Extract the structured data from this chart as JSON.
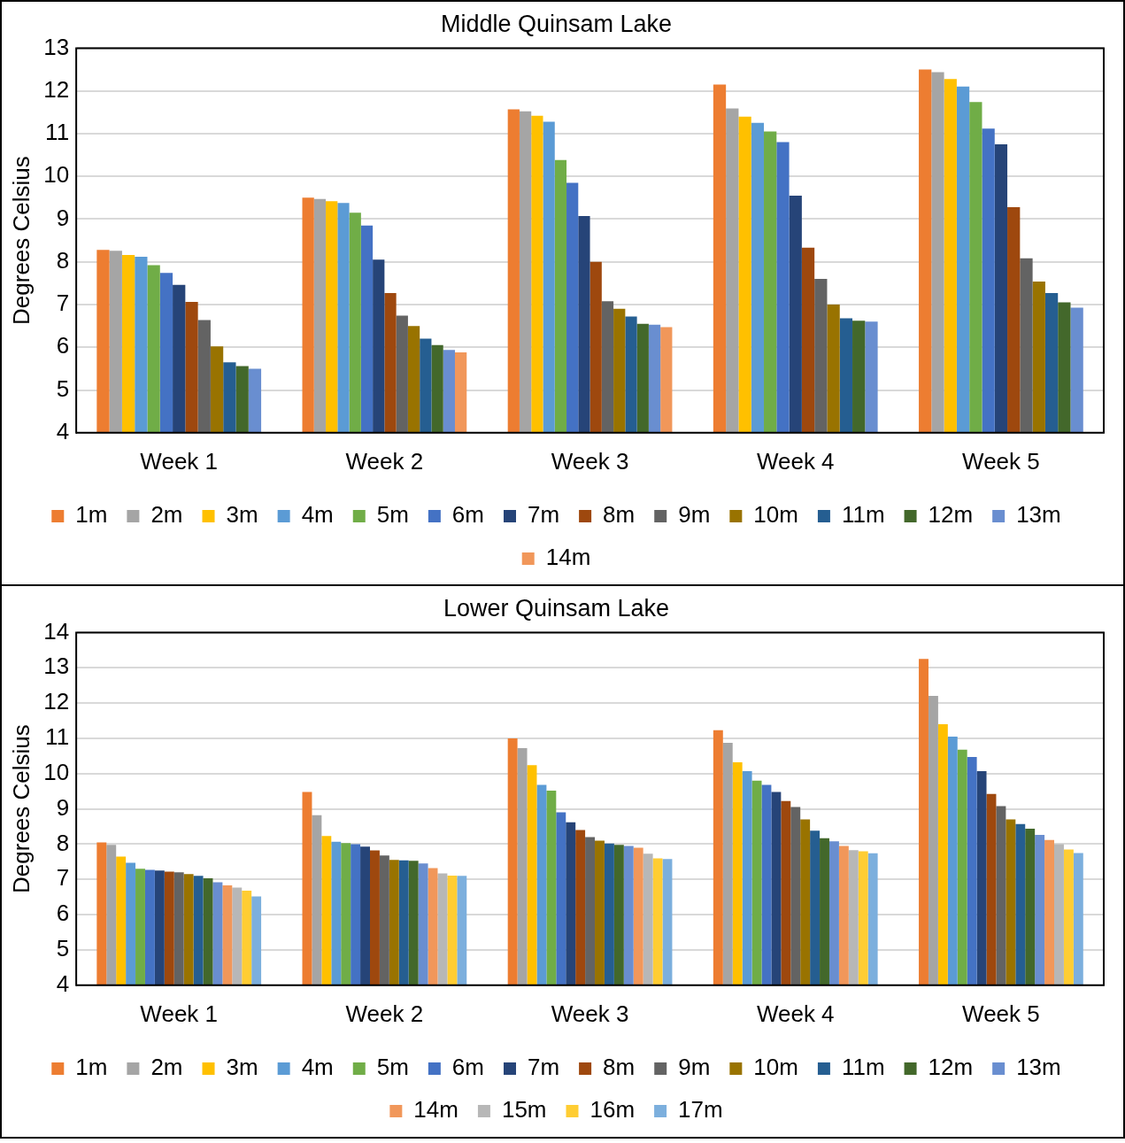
{
  "chart_data": [
    {
      "type": "bar",
      "title": "Middle Quinsam Lake",
      "ylabel": "Degrees Celsius",
      "categories": [
        "Week 1",
        "Week 2",
        "Week 3",
        "Week 4",
        "Week 5"
      ],
      "ylim": [
        4,
        13
      ],
      "yticks": [
        4,
        5,
        6,
        7,
        8,
        9,
        10,
        11,
        12,
        13
      ],
      "grid": "y",
      "legend": "bottom",
      "series": [
        {
          "name": "1m",
          "color": "#ed7d31",
          "values": [
            8.28,
            9.5,
            11.57,
            12.15,
            12.5
          ]
        },
        {
          "name": "2m",
          "color": "#a5a5a5",
          "values": [
            8.26,
            9.47,
            11.52,
            11.59,
            12.44
          ]
        },
        {
          "name": "3m",
          "color": "#ffc000",
          "values": [
            8.16,
            9.42,
            11.42,
            11.4,
            12.28
          ]
        },
        {
          "name": "4m",
          "color": "#5b9bd5",
          "values": [
            8.12,
            9.38,
            11.28,
            11.25,
            12.1
          ]
        },
        {
          "name": "5m",
          "color": "#70ad47",
          "values": [
            7.92,
            9.15,
            10.38,
            11.05,
            11.74
          ]
        },
        {
          "name": "6m",
          "color": "#4472c4",
          "values": [
            7.74,
            8.85,
            9.85,
            10.8,
            11.12
          ]
        },
        {
          "name": "7m",
          "color": "#264478",
          "values": [
            7.46,
            8.05,
            9.07,
            9.55,
            10.75
          ]
        },
        {
          "name": "8m",
          "color": "#9e480e",
          "values": [
            7.06,
            7.27,
            8.0,
            8.33,
            9.28
          ]
        },
        {
          "name": "9m",
          "color": "#636363",
          "values": [
            6.64,
            6.74,
            7.08,
            7.6,
            8.08
          ]
        },
        {
          "name": "10m",
          "color": "#997300",
          "values": [
            6.02,
            6.5,
            6.9,
            7.0,
            7.54
          ]
        },
        {
          "name": "11m",
          "color": "#255e91",
          "values": [
            5.65,
            6.2,
            6.72,
            6.68,
            7.27
          ]
        },
        {
          "name": "12m",
          "color": "#43682b",
          "values": [
            5.56,
            6.05,
            6.55,
            6.62,
            7.05
          ]
        },
        {
          "name": "13m",
          "color": "#698ed0",
          "values": [
            5.5,
            5.94,
            6.53,
            6.6,
            6.93
          ]
        },
        {
          "name": "14m",
          "color": "#f1975a",
          "values": [
            null,
            5.88,
            6.47,
            null,
            null
          ]
        }
      ]
    },
    {
      "type": "bar",
      "title": "Lower Quinsam Lake",
      "ylabel": "Degrees Celsius",
      "categories": [
        "Week 1",
        "Week 2",
        "Week 3",
        "Week 4",
        "Week 5"
      ],
      "ylim": [
        4,
        14
      ],
      "yticks": [
        4,
        5,
        6,
        7,
        8,
        9,
        10,
        11,
        12,
        13,
        14
      ],
      "grid": "y",
      "legend": "bottom",
      "series": [
        {
          "name": "1m",
          "color": "#ed7d31",
          "values": [
            8.05,
            9.48,
            11.0,
            11.23,
            13.25
          ]
        },
        {
          "name": "2m",
          "color": "#a5a5a5",
          "values": [
            7.98,
            8.82,
            10.72,
            10.87,
            12.2
          ]
        },
        {
          "name": "3m",
          "color": "#ffc000",
          "values": [
            7.65,
            8.23,
            10.24,
            10.32,
            11.4
          ]
        },
        {
          "name": "4m",
          "color": "#5b9bd5",
          "values": [
            7.47,
            8.07,
            9.68,
            10.07,
            11.05
          ]
        },
        {
          "name": "5m",
          "color": "#70ad47",
          "values": [
            7.3,
            8.03,
            9.52,
            9.8,
            10.68
          ]
        },
        {
          "name": "6m",
          "color": "#4472c4",
          "values": [
            7.27,
            8.0,
            8.9,
            9.68,
            10.47
          ]
        },
        {
          "name": "7m",
          "color": "#264478",
          "values": [
            7.25,
            7.93,
            8.62,
            9.48,
            10.07
          ]
        },
        {
          "name": "8m",
          "color": "#9e480e",
          "values": [
            7.22,
            7.82,
            8.4,
            9.22,
            9.42
          ]
        },
        {
          "name": "9m",
          "color": "#636363",
          "values": [
            7.2,
            7.68,
            8.2,
            9.05,
            9.08
          ]
        },
        {
          "name": "10m",
          "color": "#997300",
          "values": [
            7.15,
            7.55,
            8.1,
            8.7,
            8.7
          ]
        },
        {
          "name": "11m",
          "color": "#255e91",
          "values": [
            7.1,
            7.54,
            8.02,
            8.38,
            8.57
          ]
        },
        {
          "name": "12m",
          "color": "#43682b",
          "values": [
            7.03,
            7.53,
            7.98,
            8.17,
            8.44
          ]
        },
        {
          "name": "13m",
          "color": "#698ed0",
          "values": [
            6.92,
            7.45,
            7.95,
            8.08,
            8.26
          ]
        },
        {
          "name": "14m",
          "color": "#f1975a",
          "values": [
            6.83,
            7.32,
            7.9,
            7.95,
            8.12
          ]
        },
        {
          "name": "15m",
          "color": "#b7b7b7",
          "values": [
            6.77,
            7.17,
            7.73,
            7.83,
            8.0
          ]
        },
        {
          "name": "16m",
          "color": "#ffcd33",
          "values": [
            6.68,
            7.11,
            7.6,
            7.8,
            7.85
          ]
        },
        {
          "name": "17m",
          "color": "#7cafdd",
          "values": [
            6.52,
            7.1,
            7.58,
            7.74,
            7.75
          ]
        }
      ]
    }
  ]
}
